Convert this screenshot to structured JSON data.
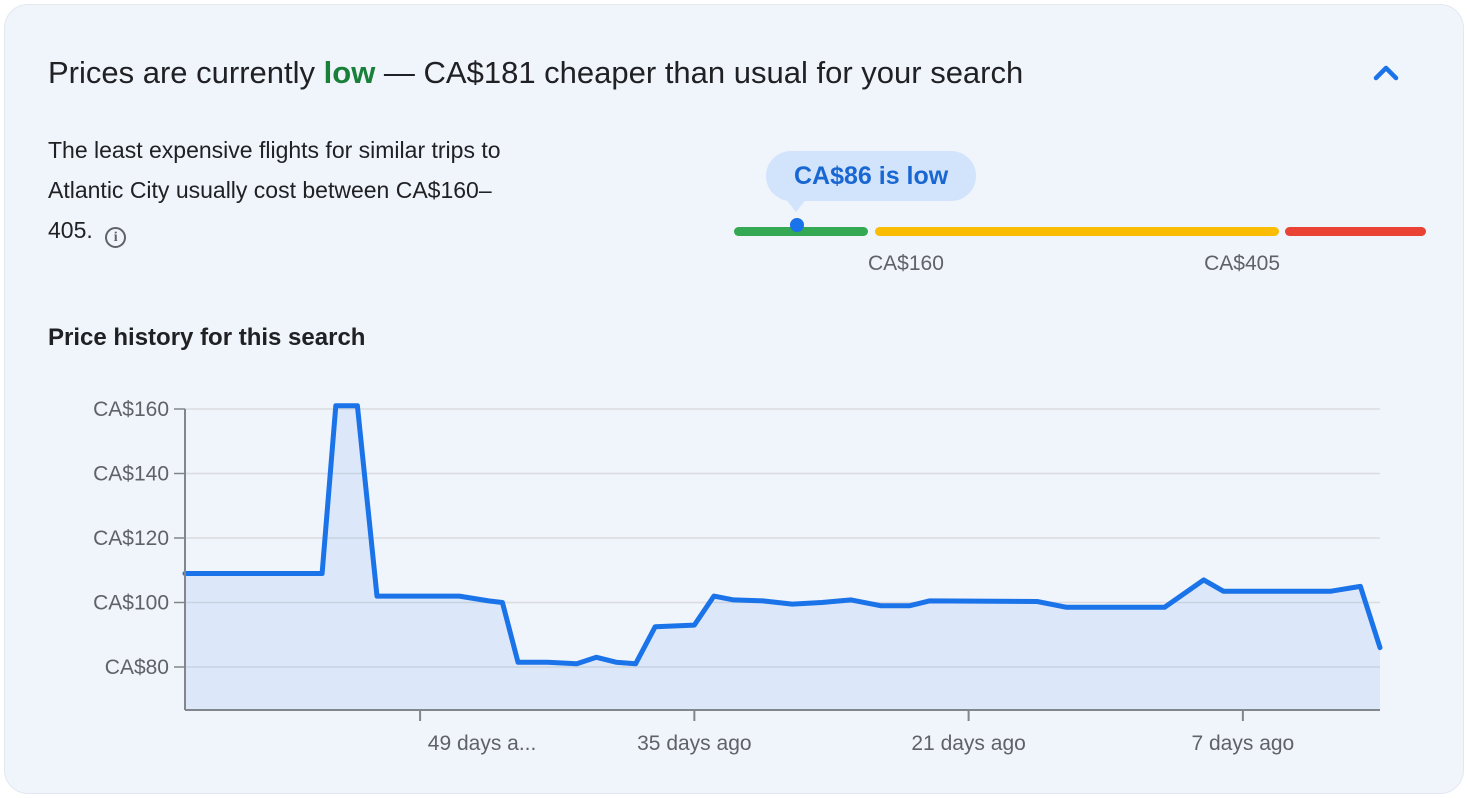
{
  "card": {
    "background": "#f0f4fb"
  },
  "header": {
    "title_prefix": "Prices are currently ",
    "title_highlight": "low",
    "title_suffix": " — CA$181 cheaper than usual for your search",
    "highlight_color": "#188038",
    "collapse_icon": "chevron-up-icon",
    "icon_color": "#1a73e8"
  },
  "description": {
    "text": "The least expensive flights for similar trips to Atlantic City usually cost between CA$160–405.",
    "info_icon": "info-icon",
    "info_glyph": "i"
  },
  "price_gauge": {
    "tooltip_text": "CA$86 is low",
    "min_label": "CA$160",
    "max_label": "CA$405",
    "current_price": 86,
    "colors": {
      "low_segment": "#34a853",
      "typical_segment": "#fbbc04",
      "high_segment": "#ea4335",
      "marker_ring": "#1a73e8",
      "tooltip_bg": "#d2e3fc",
      "tooltip_text": "#1967d2"
    }
  },
  "chart": {
    "title": "Price history for this search"
  },
  "chart_data": {
    "type": "area",
    "title": "Price history for this search",
    "x_unit": "days_ago",
    "x_range_days_ago": [
      61,
      0
    ],
    "ylim": [
      67,
      165
    ],
    "currency": "CA$",
    "line_color": "#1a73e8",
    "fill_color": "rgba(26,115,232,0.09)",
    "grid_color": "#dadce0",
    "axis_color": "#80868b",
    "label_color": "#5f6368",
    "grid": true,
    "legend": false,
    "y_ticks": [
      {
        "label": "CA$160",
        "value": 160
      },
      {
        "label": "CA$140",
        "value": 140
      },
      {
        "label": "CA$120",
        "value": 120
      },
      {
        "label": "CA$100",
        "value": 100
      },
      {
        "label": "CA$80",
        "value": 80
      }
    ],
    "x_ticks": [
      {
        "label": "49 days a...",
        "days_ago": 49,
        "label_dx": 62
      },
      {
        "label": "35 days ago",
        "days_ago": 35,
        "label_dx": 0
      },
      {
        "label": "21 days ago",
        "days_ago": 21,
        "label_dx": 0
      },
      {
        "label": "7 days ago",
        "days_ago": 7,
        "label_dx": 0
      }
    ],
    "points": [
      [
        61,
        109
      ],
      [
        54,
        109
      ],
      [
        53.3,
        161
      ],
      [
        52.2,
        161
      ],
      [
        51.2,
        102
      ],
      [
        47,
        102
      ],
      [
        45.5,
        100.5
      ],
      [
        44.8,
        100
      ],
      [
        44,
        81.5
      ],
      [
        42.5,
        81.5
      ],
      [
        41,
        81
      ],
      [
        40,
        83
      ],
      [
        39,
        81.5
      ],
      [
        38,
        81
      ],
      [
        37,
        92.5
      ],
      [
        35,
        93
      ],
      [
        34,
        102
      ],
      [
        33,
        100.8
      ],
      [
        31.5,
        100.5
      ],
      [
        30,
        99.5
      ],
      [
        28.5,
        100
      ],
      [
        27,
        100.8
      ],
      [
        25.5,
        99
      ],
      [
        24,
        99
      ],
      [
        23,
        100.5
      ],
      [
        17.5,
        100.3
      ],
      [
        16,
        98.5
      ],
      [
        11,
        98.5
      ],
      [
        9,
        107
      ],
      [
        8,
        103.5
      ],
      [
        2.5,
        103.5
      ],
      [
        1,
        105
      ],
      [
        0,
        86
      ]
    ]
  }
}
